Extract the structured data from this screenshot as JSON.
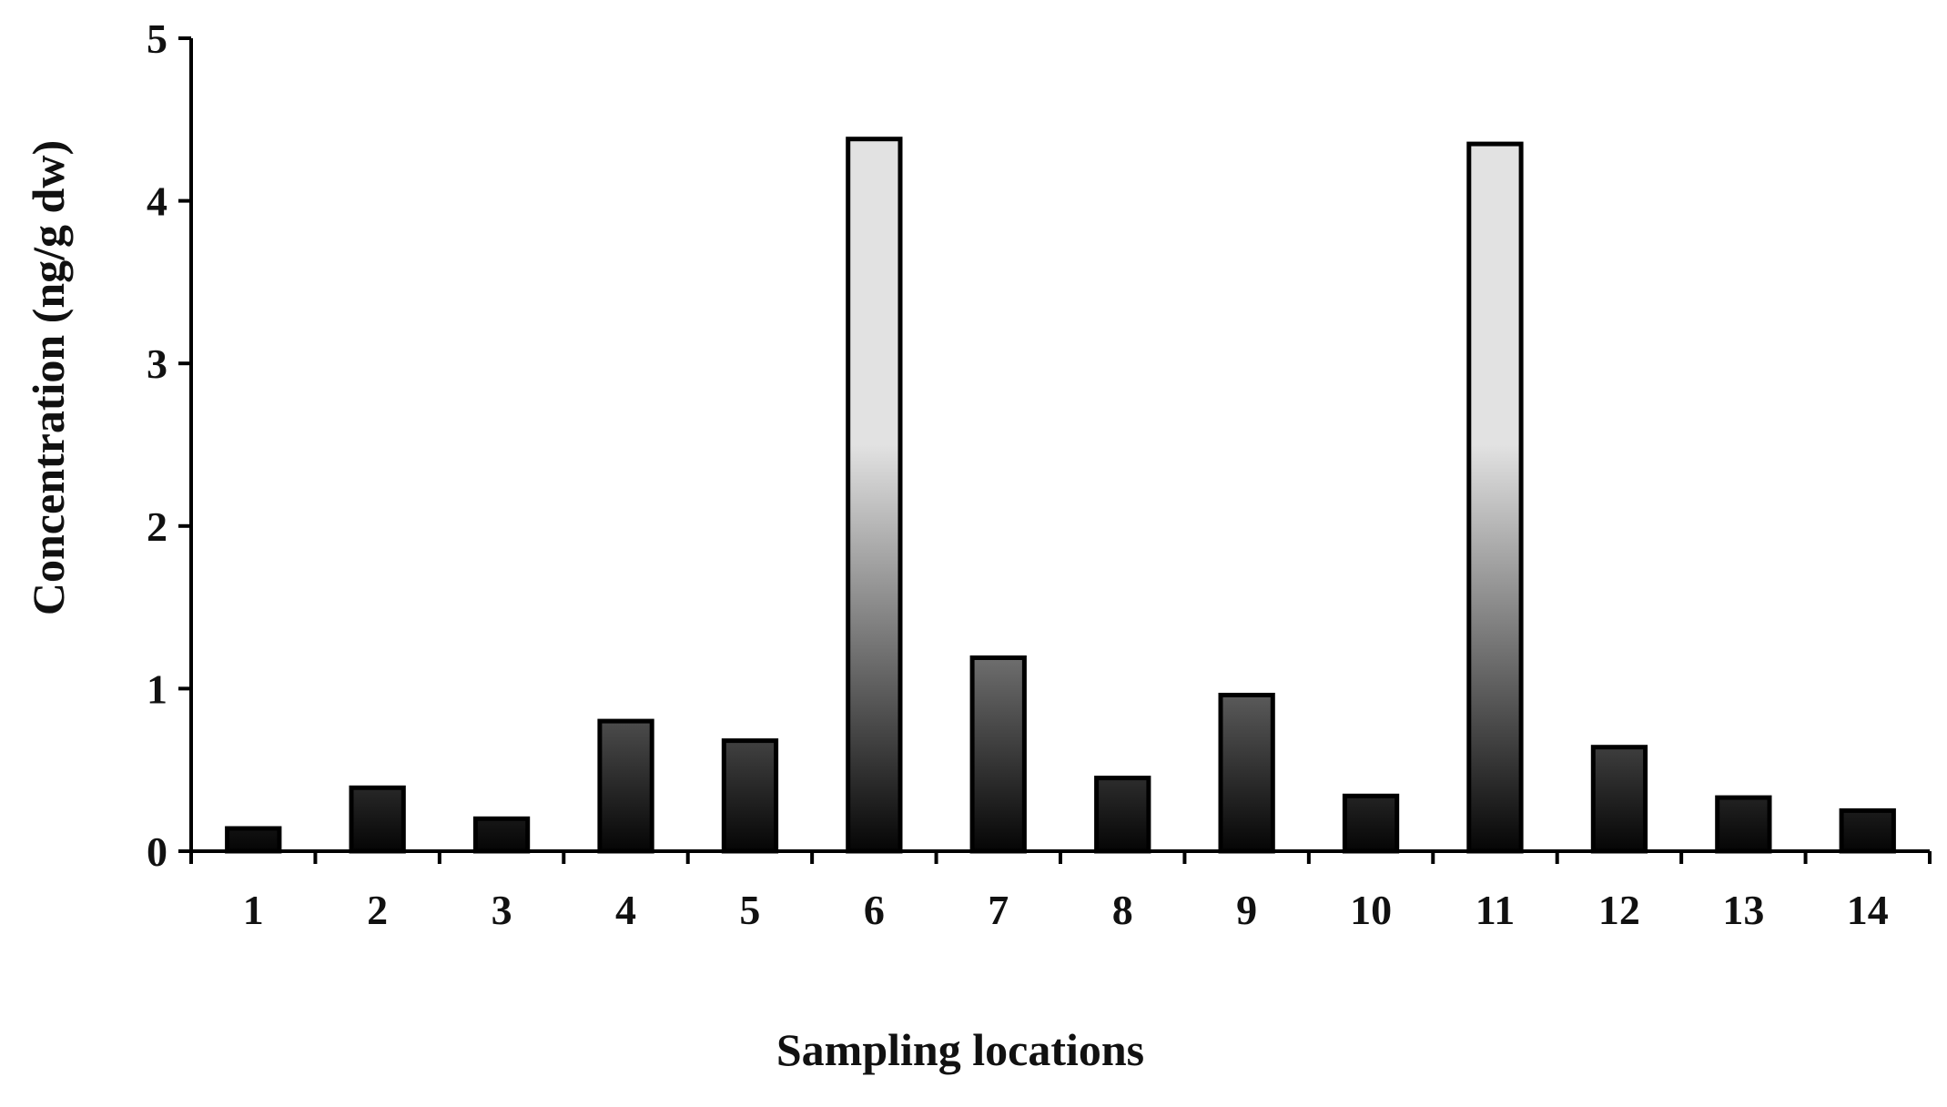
{
  "chart_data": {
    "type": "bar",
    "title": "",
    "xlabel": "Sampling locations",
    "ylabel": "Concentration (ng/g dw)",
    "categories": [
      "1",
      "2",
      "3",
      "4",
      "5",
      "6",
      "7",
      "8",
      "9",
      "10",
      "11",
      "12",
      "13",
      "14"
    ],
    "values": [
      0.14,
      0.39,
      0.2,
      0.8,
      0.68,
      4.38,
      1.19,
      0.45,
      0.96,
      0.34,
      4.35,
      0.64,
      0.33,
      0.25
    ],
    "ylim": [
      0,
      5
    ],
    "yticks": [
      "0",
      "1",
      "2",
      "3",
      "4",
      "5"
    ],
    "grid": false,
    "legend": "none",
    "bar_style": "vertical gradient, black at base to light gray at top, black outline",
    "colors": {
      "bar_dark": "#050505",
      "bar_light": "#e2e2e2",
      "outline": "#000000",
      "axis": "#000000",
      "background": "#ffffff"
    }
  }
}
